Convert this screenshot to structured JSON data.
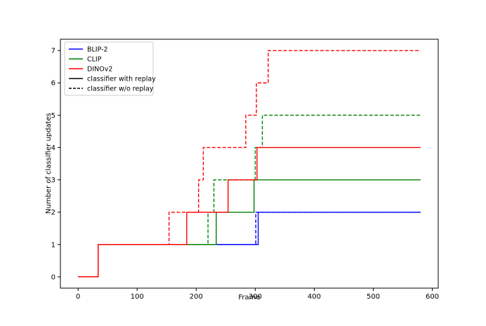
{
  "chart_data": {
    "type": "line",
    "title": "",
    "xlabel": "Frame",
    "ylabel": "Number of classifier updates",
    "xlim": [
      -30,
      610
    ],
    "ylim": [
      -0.35,
      7.35
    ],
    "x_ticks": [
      0,
      100,
      200,
      300,
      400,
      500,
      600
    ],
    "y_ticks": [
      0,
      1,
      2,
      3,
      4,
      5,
      6,
      7
    ],
    "grid": false,
    "legend_position": "top-left",
    "legend": [
      {
        "label": "BLIP-2",
        "color": "#0000ff",
        "dash": "solid"
      },
      {
        "label": "CLIP",
        "color": "#008000",
        "dash": "solid"
      },
      {
        "label": "DINOv2",
        "color": "#ff0000",
        "dash": "solid"
      },
      {
        "label": "classifier with replay",
        "color": "#000000",
        "dash": "solid"
      },
      {
        "label": "classifier w/o replay",
        "color": "#000000",
        "dash": "dashed"
      }
    ],
    "series": [
      {
        "model": "BLIP-2",
        "variant": "with replay",
        "color": "#0000ff",
        "dashed": false,
        "x": [
          0,
          34,
          34,
          305,
          305,
          580
        ],
        "y": [
          0,
          0,
          1,
          1,
          2,
          2
        ]
      },
      {
        "model": "BLIP-2",
        "variant": "w/o replay",
        "color": "#0000ff",
        "dashed": true,
        "x": [
          0,
          34,
          34,
          301,
          301,
          580
        ],
        "y": [
          0,
          0,
          1,
          1,
          2,
          2
        ]
      },
      {
        "model": "CLIP",
        "variant": "with replay",
        "color": "#008000",
        "dashed": false,
        "x": [
          0,
          34,
          34,
          234,
          234,
          298,
          298,
          580
        ],
        "y": [
          0,
          0,
          1,
          1,
          2,
          2,
          3,
          3
        ]
      },
      {
        "model": "CLIP",
        "variant": "w/o replay",
        "color": "#008000",
        "dashed": true,
        "x": [
          0,
          34,
          34,
          220,
          220,
          230,
          230,
          300,
          300,
          312,
          312,
          580
        ],
        "y": [
          0,
          0,
          1,
          1,
          2,
          2,
          3,
          3,
          4,
          4,
          5,
          5
        ]
      },
      {
        "model": "DINOv2",
        "variant": "with replay",
        "color": "#ff0000",
        "dashed": false,
        "x": [
          0,
          34,
          34,
          184,
          184,
          254,
          254,
          303,
          303,
          580
        ],
        "y": [
          0,
          0,
          1,
          1,
          2,
          2,
          3,
          3,
          4,
          4
        ]
      },
      {
        "model": "DINOv2",
        "variant": "w/o replay",
        "color": "#ff0000",
        "dashed": true,
        "x": [
          0,
          34,
          34,
          154,
          154,
          204,
          204,
          212,
          212,
          284,
          284,
          302,
          302,
          322,
          322,
          580
        ],
        "y": [
          0,
          0,
          1,
          1,
          2,
          2,
          3,
          3,
          4,
          4,
          5,
          5,
          6,
          6,
          7,
          7
        ]
      }
    ]
  }
}
